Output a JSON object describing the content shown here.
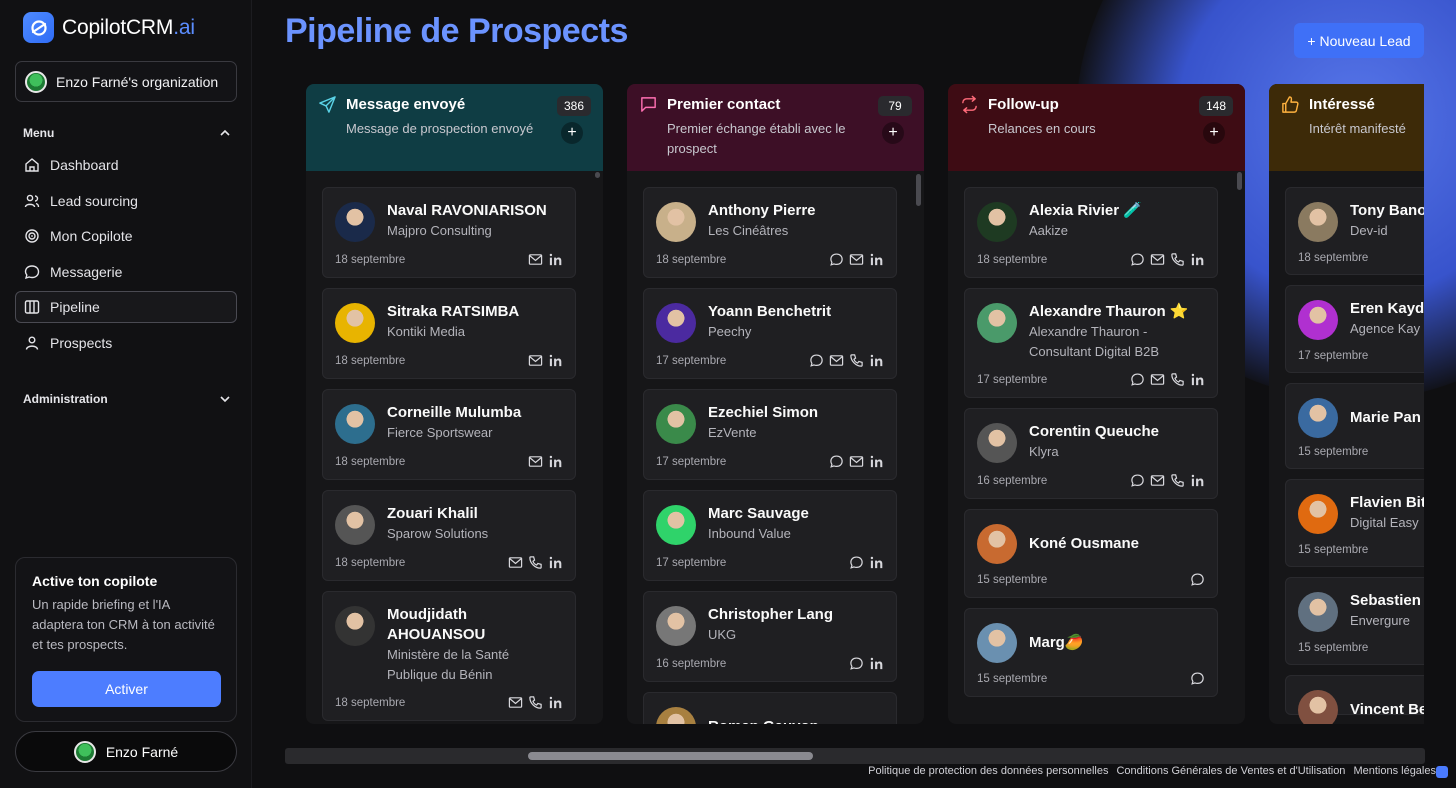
{
  "app": {
    "logo_text": "CopilotCRM",
    "logo_suffix": ".ai"
  },
  "organization": {
    "label": "Enzo Farné's organization"
  },
  "sidebar": {
    "menu_label": "Menu",
    "items": [
      {
        "label": "Dashboard",
        "icon": "home-icon"
      },
      {
        "label": "Lead sourcing",
        "icon": "users-icon"
      },
      {
        "label": "Mon Copilote",
        "icon": "target-icon"
      },
      {
        "label": "Messagerie",
        "icon": "chat-icon"
      },
      {
        "label": "Pipeline",
        "icon": "columns-icon",
        "active": true
      },
      {
        "label": "Prospects",
        "icon": "user-icon"
      }
    ],
    "admin_label": "Administration"
  },
  "promo": {
    "title": "Active ton copilote",
    "text": "Un rapide briefing et l'IA adaptera ton CRM à ton activité et tes prospects.",
    "button": "Activer"
  },
  "user": {
    "name": "Enzo Farné"
  },
  "page": {
    "title": "Pipeline de Prospects",
    "new_lead": "+ Nouveau Lead"
  },
  "colors": {
    "accent": "#4d7dff",
    "col_sent": "#0f3d44",
    "col_first": "#3d0f26",
    "col_follow": "#3e0c14",
    "col_interest": "#3d2a08"
  },
  "columns": [
    {
      "title": "Message envoyé",
      "subtitle": "Message de prospection envoyé",
      "count": "386",
      "add": "+",
      "cards": [
        {
          "name": "Naval RAVONIARISON",
          "company": "Majpro Consulting",
          "date": "18 septembre"
        },
        {
          "name": "Sitraka RATSIMBA",
          "company": "Kontiki Media",
          "date": "18 septembre"
        },
        {
          "name": "Corneille Mulumba",
          "company": "Fierce Sportswear",
          "date": "18 septembre"
        },
        {
          "name": "Zouari Khalil",
          "company": "Sparow Solutions",
          "date": "18 septembre"
        },
        {
          "name": "Moudjidath AHOUANSOU",
          "company": "Ministère de la Santé Publique du Bénin",
          "date": "18 septembre"
        }
      ]
    },
    {
      "title": "Premier contact",
      "subtitle": "Premier échange établi avec le prospect",
      "count": "79",
      "add": "+",
      "cards": [
        {
          "name": "Anthony Pierre",
          "company": "Les Cinéâtres",
          "date": "18 septembre"
        },
        {
          "name": "Yoann Benchetrit",
          "company": "Peechy",
          "date": "17 septembre"
        },
        {
          "name": "Ezechiel Simon",
          "company": "EzVente",
          "date": "17 septembre"
        },
        {
          "name": "Marc Sauvage",
          "company": "Inbound Value",
          "date": "17 septembre"
        },
        {
          "name": "Christopher Lang",
          "company": "UKG",
          "date": "16 septembre"
        },
        {
          "name": "Roman Gauyon",
          "company": "",
          "date": ""
        }
      ]
    },
    {
      "title": "Follow-up",
      "subtitle": "Relances en cours",
      "count": "148",
      "add": "+",
      "cards": [
        {
          "name": "Alexia Rivier 🧪",
          "company": "Aakize",
          "date": "18 septembre"
        },
        {
          "name": "Alexandre Thauron ⭐",
          "company": "Alexandre Thauron - Consultant Digital B2B",
          "date": "17 septembre"
        },
        {
          "name": "Corentin Queuche",
          "company": "Klyra",
          "date": "16 septembre"
        },
        {
          "name": "Koné Ousmane",
          "company": "",
          "date": "15 septembre"
        },
        {
          "name": "Marg🥭",
          "company": "",
          "date": "15 septembre"
        }
      ]
    },
    {
      "title": "Intéressé",
      "subtitle": "Intérêt manifesté",
      "count": "",
      "add": "",
      "cards": [
        {
          "name": "Tony Bano",
          "company": "Dev-id",
          "date": "18 septembre"
        },
        {
          "name": "Eren Kayd",
          "company": "Agence Kay",
          "date": "17 septembre"
        },
        {
          "name": "Marie Pan",
          "company": "",
          "date": "15 septembre"
        },
        {
          "name": "Flavien Bit",
          "company": "Digital Easy",
          "date": "15 septembre"
        },
        {
          "name": "Sebastien H",
          "company": "Envergure",
          "date": "15 septembre"
        },
        {
          "name": "Vincent Be",
          "company": "",
          "date": ""
        }
      ]
    }
  ],
  "footer": {
    "privacy": "Politique de protection des données personnelles",
    "terms": "Conditions Générales de Ventes et d'Utilisation",
    "legal": "Mentions légales"
  }
}
